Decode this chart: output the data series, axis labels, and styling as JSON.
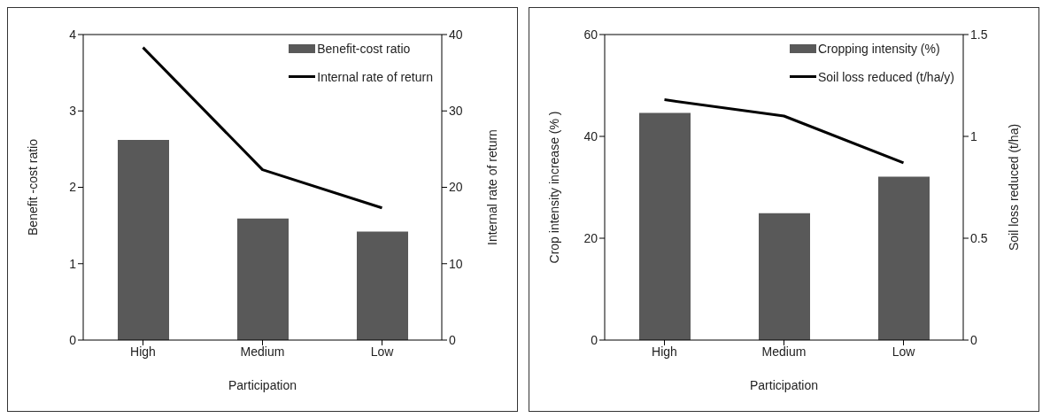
{
  "chart_data": [
    {
      "type": "bar",
      "xlabel": "Participation",
      "ylabel": "Benefit -cost ratio",
      "y2label": "Internal rate of return",
      "categories": [
        "High",
        "Medium",
        "Low"
      ],
      "series": [
        {
          "name": "Benefit-cost ratio",
          "color": "#595959",
          "values": [
            2.62,
            1.59,
            1.42
          ]
        },
        {
          "name": "Internal rate of return",
          "type": "line",
          "axis": "y2",
          "color": "#000000",
          "values": [
            38.3,
            22.3,
            17.3
          ]
        }
      ],
      "ylim": [
        0,
        4
      ],
      "yticks": [
        0,
        1,
        2,
        3,
        4
      ],
      "y2lim": [
        0,
        40
      ],
      "y2ticks": [
        0,
        10,
        20,
        30,
        40
      ],
      "legend": "top right",
      "marker": "none",
      "grid": false
    },
    {
      "type": "bar",
      "xlabel": "Participation",
      "ylabel": "Crop  intensity increase (% )",
      "y2label": "Soil loss reduced (t/ha)",
      "categories": [
        "High",
        "Medium",
        "Low"
      ],
      "series": [
        {
          "name": "Cropping intensity (%)",
          "color": "#595959",
          "values": [
            44.6,
            24.9,
            32.1
          ]
        },
        {
          "name": "Soil loss reduced (t/ha/y)",
          "type": "line",
          "axis": "y2",
          "color": "#000000",
          "values": [
            1.18,
            1.1,
            0.87
          ]
        }
      ],
      "ylim": [
        0,
        60
      ],
      "yticks": [
        0,
        20,
        40,
        60
      ],
      "y2lim": [
        0,
        1.5
      ],
      "y2ticks": [
        0,
        0.5,
        1,
        1.5
      ],
      "legend": "top right",
      "marker": "none",
      "grid": false
    }
  ]
}
